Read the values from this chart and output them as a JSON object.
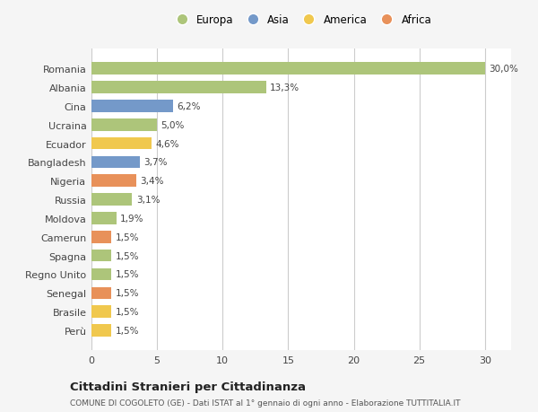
{
  "countries": [
    "Romania",
    "Albania",
    "Cina",
    "Ucraina",
    "Ecuador",
    "Bangladesh",
    "Nigeria",
    "Russia",
    "Moldova",
    "Camerun",
    "Spagna",
    "Regno Unito",
    "Senegal",
    "Brasile",
    "Perù"
  ],
  "values": [
    30.0,
    13.3,
    6.2,
    5.0,
    4.6,
    3.7,
    3.4,
    3.1,
    1.9,
    1.5,
    1.5,
    1.5,
    1.5,
    1.5,
    1.5
  ],
  "labels": [
    "30,0%",
    "13,3%",
    "6,2%",
    "5,0%",
    "4,6%",
    "3,7%",
    "3,4%",
    "3,1%",
    "1,9%",
    "1,5%",
    "1,5%",
    "1,5%",
    "1,5%",
    "1,5%",
    "1,5%"
  ],
  "continents": [
    "Europa",
    "Europa",
    "Asia",
    "Europa",
    "America",
    "Asia",
    "Africa",
    "Europa",
    "Europa",
    "Africa",
    "Europa",
    "Europa",
    "Africa",
    "America",
    "America"
  ],
  "continent_colors": {
    "Europa": "#adc57a",
    "Asia": "#7499c9",
    "America": "#f0c84e",
    "Africa": "#e8915a"
  },
  "legend_order": [
    "Europa",
    "Asia",
    "America",
    "Africa"
  ],
  "xlim": [
    0,
    32
  ],
  "xticks": [
    0,
    5,
    10,
    15,
    20,
    25,
    30
  ],
  "title1": "Cittadini Stranieri per Cittadinanza",
  "title2": "COMUNE DI COGOLETO (GE) - Dati ISTAT al 1° gennaio di ogni anno - Elaborazione TUTTITALIA.IT",
  "background_color": "#f5f5f5",
  "plot_bg_color": "#ffffff",
  "grid_color": "#cccccc"
}
